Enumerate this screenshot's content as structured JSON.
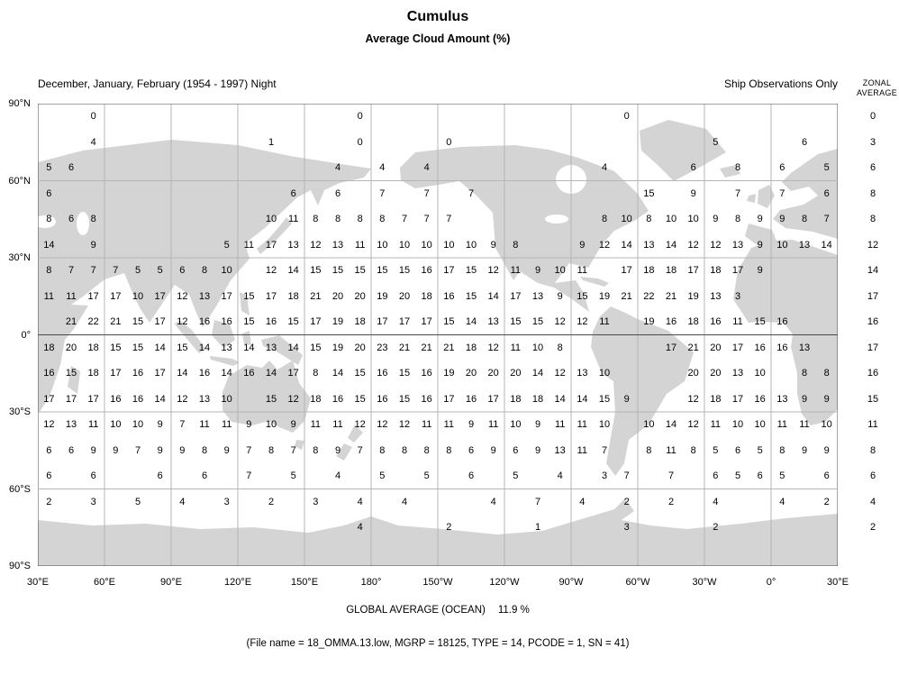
{
  "header": {
    "title": "Cumulus",
    "subtitle": "Average Cloud Amount (%)",
    "period": "December, January, February (1954 - 1997) Night",
    "source": "Ship Observations Only",
    "zonal_line1": "ZONAL",
    "zonal_line2": "AVERAGE"
  },
  "footer": {
    "global_average_label": "GLOBAL AVERAGE (OCEAN)",
    "global_average_value": "11.9 %",
    "file_info": "(File name = 18_OMMA.13.low, MGRP = 18125, TYPE = 14, PCODE = 1, SN = 41)"
  },
  "chart_data": {
    "type": "heatmap",
    "title": "Cumulus",
    "subtitle": "Average Cloud Amount (%)",
    "period": "December, January, February (1954 - 1997) Night",
    "source": "Ship Observations Only",
    "description": "Average cumulus cloud amount (%) over the ocean on a 10-degree global grid; numbers plotted over ocean areas of a world map starting at 30E",
    "grid_cell_degrees": 10,
    "lon_axis": {
      "labels": [
        "30°E",
        "60°E",
        "90°E",
        "120°E",
        "150°E",
        "180°",
        "150°W",
        "120°W",
        "90°W",
        "60°W",
        "30°W",
        "0°",
        "30°E"
      ]
    },
    "lat_axis": {
      "labels": [
        "90°N",
        "60°N",
        "30°N",
        "0°",
        "30°S",
        "60°S",
        "90°S"
      ]
    },
    "zonal_averages": [
      "0",
      "3",
      "6",
      "8",
      "8",
      "12",
      "14",
      "17",
      "16",
      "17",
      "16",
      "15",
      "11",
      "8",
      "6",
      "4",
      "2"
    ],
    "global_average_ocean_percent": 11.9,
    "rows": [
      {
        "lat_band": "90N-80N",
        "zonal_average": "0",
        "cells": {
          "2": "0",
          "14": "0",
          "26": "0"
        }
      },
      {
        "lat_band": "80N-70N",
        "zonal_average": "3",
        "cells": {
          "2": "4",
          "10": "1",
          "14": "0",
          "18": "0",
          "30": "5",
          "34": "6"
        }
      },
      {
        "lat_band": "70N-60N",
        "zonal_average": "6",
        "cells": {
          "0": "5",
          "1": "6",
          "13": "4",
          "15": "4",
          "17": "4",
          "25": "4",
          "29": "6",
          "31": "8",
          "33": "6",
          "35": "5"
        }
      },
      {
        "lat_band": "60N-50N",
        "zonal_average": "8",
        "cells": {
          "0": "6",
          "11": "6",
          "13": "6",
          "15": "7",
          "17": "7",
          "19": "7",
          "27": "15",
          "29": "9",
          "31": "7",
          "33": "7",
          "35": "6"
        }
      },
      {
        "lat_band": "50N-40N",
        "zonal_average": "8",
        "cells": {
          "0": "8",
          "1": "6",
          "2": "8",
          "10": "10",
          "11": "11",
          "12": "8",
          "13": "8",
          "14": "8",
          "15": "8",
          "16": "7",
          "17": "7",
          "18": "7",
          "25": "8",
          "26": "10",
          "27": "8",
          "28": "10",
          "29": "10",
          "30": "9",
          "31": "8",
          "32": "9",
          "33": "9",
          "34": "8",
          "35": "7"
        }
      },
      {
        "lat_band": "40N-30N",
        "zonal_average": "12",
        "cells": {
          "0": "14",
          "2": "9",
          "8": "5",
          "9": "11",
          "10": "17",
          "11": "13",
          "12": "12",
          "13": "13",
          "14": "11",
          "15": "10",
          "16": "10",
          "17": "10",
          "18": "10",
          "19": "10",
          "20": "9",
          "21": "8",
          "24": "9",
          "25": "12",
          "26": "14",
          "27": "13",
          "28": "14",
          "29": "12",
          "30": "12",
          "31": "13",
          "32": "9",
          "33": "10",
          "34": "13",
          "35": "14"
        }
      },
      {
        "lat_band": "30N-20N",
        "zonal_average": "14",
        "cells": {
          "0": "8",
          "1": "7",
          "2": "7",
          "3": "7",
          "4": "5",
          "5": "5",
          "6": "6",
          "7": "8",
          "8": "10",
          "10": "12",
          "11": "14",
          "12": "15",
          "13": "15",
          "14": "15",
          "15": "15",
          "16": "15",
          "17": "16",
          "18": "17",
          "19": "15",
          "20": "12",
          "21": "11",
          "22": "9",
          "23": "10",
          "24": "11",
          "26": "17",
          "27": "18",
          "28": "18",
          "29": "17",
          "30": "18",
          "31": "17",
          "32": "9"
        }
      },
      {
        "lat_band": "20N-10N",
        "zonal_average": "17",
        "cells": {
          "0": "11",
          "1": "11",
          "2": "17",
          "3": "17",
          "4": "10",
          "5": "17",
          "6": "12",
          "7": "13",
          "8": "17",
          "9": "15",
          "10": "17",
          "11": "18",
          "12": "21",
          "13": "20",
          "14": "20",
          "15": "19",
          "16": "20",
          "17": "18",
          "18": "16",
          "19": "15",
          "20": "14",
          "21": "17",
          "22": "13",
          "23": "9",
          "24": "15",
          "25": "19",
          "26": "21",
          "27": "22",
          "28": "21",
          "29": "19",
          "30": "13",
          "31": "3"
        }
      },
      {
        "lat_band": "10N-0",
        "zonal_average": "16",
        "cells": {
          "1": "21",
          "2": "22",
          "3": "21",
          "4": "15",
          "5": "17",
          "6": "12",
          "7": "16",
          "8": "16",
          "9": "15",
          "10": "16",
          "11": "15",
          "12": "17",
          "13": "19",
          "14": "18",
          "15": "17",
          "16": "17",
          "17": "17",
          "18": "15",
          "19": "14",
          "20": "13",
          "21": "15",
          "22": "15",
          "23": "12",
          "24": "12",
          "25": "11",
          "27": "19",
          "28": "16",
          "29": "18",
          "30": "16",
          "31": "11",
          "32": "15",
          "33": "16"
        }
      },
      {
        "lat_band": "0-10S",
        "zonal_average": "17",
        "cells": {
          "0": "18",
          "1": "20",
          "2": "18",
          "3": "15",
          "4": "15",
          "5": "14",
          "6": "15",
          "7": "14",
          "8": "13",
          "9": "14",
          "10": "13",
          "11": "14",
          "12": "15",
          "13": "19",
          "14": "20",
          "15": "23",
          "16": "21",
          "17": "21",
          "18": "21",
          "19": "18",
          "20": "12",
          "21": "11",
          "22": "10",
          "23": "8",
          "28": "17",
          "29": "21",
          "30": "20",
          "31": "17",
          "32": "16",
          "33": "16",
          "34": "13"
        }
      },
      {
        "lat_band": "10S-20S",
        "zonal_average": "16",
        "cells": {
          "0": "16",
          "1": "15",
          "2": "18",
          "3": "17",
          "4": "16",
          "5": "17",
          "6": "14",
          "7": "16",
          "8": "14",
          "9": "16",
          "10": "14",
          "11": "17",
          "12": "8",
          "13": "14",
          "14": "15",
          "15": "16",
          "16": "15",
          "17": "16",
          "18": "19",
          "19": "20",
          "20": "20",
          "21": "20",
          "22": "14",
          "23": "12",
          "24": "13",
          "25": "10",
          "29": "20",
          "30": "20",
          "31": "13",
          "32": "10",
          "34": "8",
          "35": "8"
        }
      },
      {
        "lat_band": "20S-30S",
        "zonal_average": "15",
        "cells": {
          "0": "17",
          "1": "17",
          "2": "17",
          "3": "16",
          "4": "16",
          "5": "14",
          "6": "12",
          "7": "13",
          "8": "10",
          "10": "15",
          "11": "12",
          "12": "18",
          "13": "16",
          "14": "15",
          "15": "16",
          "16": "15",
          "17": "16",
          "18": "17",
          "19": "16",
          "20": "17",
          "21": "18",
          "22": "18",
          "23": "14",
          "24": "14",
          "25": "15",
          "26": "9",
          "29": "12",
          "30": "18",
          "31": "17",
          "32": "16",
          "33": "13",
          "34": "9",
          "35": "9"
        }
      },
      {
        "lat_band": "30S-40S",
        "zonal_average": "11",
        "cells": {
          "0": "12",
          "1": "13",
          "2": "11",
          "3": "10",
          "4": "10",
          "5": "9",
          "6": "7",
          "7": "11",
          "8": "11",
          "9": "9",
          "10": "10",
          "11": "9",
          "12": "11",
          "13": "11",
          "14": "12",
          "15": "12",
          "16": "12",
          "17": "11",
          "18": "11",
          "19": "9",
          "20": "11",
          "21": "10",
          "22": "9",
          "23": "11",
          "24": "11",
          "25": "10",
          "27": "10",
          "28": "14",
          "29": "12",
          "30": "11",
          "31": "10",
          "32": "10",
          "33": "11",
          "34": "11",
          "35": "10"
        }
      },
      {
        "lat_band": "40S-50S",
        "zonal_average": "8",
        "cells": {
          "0": "6",
          "1": "6",
          "2": "9",
          "3": "9",
          "4": "7",
          "5": "9",
          "6": "9",
          "7": "8",
          "8": "9",
          "9": "7",
          "10": "8",
          "11": "7",
          "12": "8",
          "13": "9",
          "14": "7",
          "15": "8",
          "16": "8",
          "17": "8",
          "18": "8",
          "19": "6",
          "20": "9",
          "21": "6",
          "22": "9",
          "23": "13",
          "24": "11",
          "25": "7",
          "27": "8",
          "28": "11",
          "29": "8",
          "30": "5",
          "31": "6",
          "32": "5",
          "33": "8",
          "34": "9",
          "35": "9"
        }
      },
      {
        "lat_band": "50S-60S",
        "zonal_average": "6",
        "cells": {
          "0": "6",
          "2": "6",
          "5": "6",
          "7": "6",
          "9": "7",
          "11": "5",
          "13": "4",
          "15": "5",
          "17": "5",
          "19": "6",
          "21": "5",
          "23": "4",
          "25": "3",
          "26": "7",
          "28": "7",
          "30": "6",
          "31": "5",
          "32": "6",
          "33": "5",
          "35": "6"
        }
      },
      {
        "lat_band": "60S-70S",
        "zonal_average": "4",
        "cells": {
          "0": "2",
          "2": "3",
          "4": "5",
          "6": "4",
          "8": "3",
          "10": "2",
          "12": "3",
          "14": "4",
          "16": "4",
          "20": "4",
          "22": "7",
          "24": "4",
          "26": "2",
          "28": "2",
          "30": "4",
          "33": "4",
          "35": "2"
        }
      },
      {
        "lat_band": "70S-80S",
        "zonal_average": "2",
        "cells": {
          "14": "4",
          "18": "2",
          "22": "1",
          "26": "3",
          "30": "2"
        }
      }
    ]
  }
}
